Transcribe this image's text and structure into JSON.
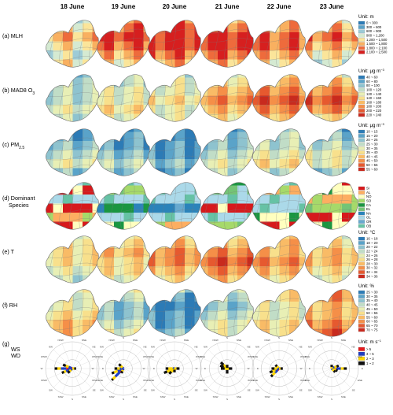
{
  "columns": [
    "18 June",
    "19 June",
    "20 June",
    "21 June",
    "22 June",
    "23 June"
  ],
  "rows": [
    {
      "id": "mlh",
      "label": "(a) MLH",
      "unit": "Unit: m",
      "legend": [
        "0 ~ 300",
        "300 ~ 600",
        "600 ~ 900",
        "900 ~ 1,200",
        "1,200 ~ 1,500",
        "1,500 ~ 1,800",
        "1,800 ~ 2,100",
        "2,100 ~ 2,500"
      ],
      "colors": [
        "#2c7bb6",
        "#5aa3c9",
        "#9dcbd6",
        "#d5ead2",
        "#fbe59a",
        "#f9b060",
        "#ee6b3c",
        "#d61f1f"
      ],
      "levels": [
        [
          3,
          4,
          5,
          4,
          3,
          4
        ],
        [
          5,
          6,
          7,
          6,
          5,
          4
        ],
        [
          6,
          7,
          7,
          7,
          6,
          5
        ],
        [
          5,
          6,
          7,
          7,
          6,
          5
        ],
        [
          5,
          5,
          6,
          6,
          5,
          4
        ],
        [
          4,
          5,
          6,
          5,
          4,
          3
        ]
      ]
    },
    {
      "id": "o3",
      "label": "(b) MAD8 O",
      "label_sub": "3",
      "unit": "Unit: μg m",
      "unit_sup": "−3",
      "legend": [
        "40 ~ 60",
        "60 ~ 80",
        "80 ~ 100",
        "100 ~ 120",
        "120 ~ 140",
        "140 ~ 160",
        "160 ~ 180",
        "180 ~ 200",
        "200 ~ 220",
        "220 ~ 240"
      ],
      "colors": [
        "#2c7bb6",
        "#5aa3c9",
        "#8ec3cf",
        "#c1ddc7",
        "#e8efb5",
        "#f8e08c",
        "#f9bb66",
        "#f58f48",
        "#e6592f",
        "#c82a1e"
      ],
      "levels": [
        [
          2,
          3,
          3,
          3,
          4,
          3
        ],
        [
          3,
          3,
          4,
          4,
          5,
          4
        ],
        [
          3,
          4,
          4,
          5,
          4,
          4
        ],
        [
          4,
          5,
          6,
          7,
          6,
          5
        ],
        [
          5,
          6,
          7,
          8,
          7,
          6
        ],
        [
          4,
          6,
          7,
          8,
          7,
          5
        ]
      ]
    },
    {
      "id": "pm25",
      "label": "(c) PM",
      "label_sub": "2.5",
      "unit": "Unit: μg m",
      "unit_sup": "−3",
      "legend": [
        "10 ~ 15",
        "15 ~ 20",
        "20 ~ 25",
        "25 ~ 30",
        "30 ~ 35",
        "35 ~ 40",
        "40 ~ 45",
        "45 ~ 50",
        "50 ~ 55",
        "55 ~ 60"
      ],
      "colors": [
        "#2c7bb6",
        "#5aa3c9",
        "#8ec3cf",
        "#c1ddc7",
        "#e8efb5",
        "#f8e08c",
        "#f9bb66",
        "#f58f48",
        "#e6592f",
        "#c82a1e"
      ],
      "levels": [
        [
          1,
          1,
          2,
          3,
          4,
          2
        ],
        [
          0,
          1,
          1,
          2,
          3,
          2
        ],
        [
          0,
          0,
          1,
          1,
          2,
          1
        ],
        [
          1,
          2,
          2,
          3,
          4,
          3
        ],
        [
          2,
          3,
          3,
          4,
          5,
          3
        ],
        [
          1,
          2,
          3,
          4,
          4,
          2
        ]
      ]
    },
    {
      "id": "species",
      "label": "(d) Dominant",
      "label2": "Species",
      "unit": "",
      "legend": [
        "SI",
        "AL",
        "NO",
        "SO",
        "CA",
        "EL",
        "NA",
        "OL",
        "OR",
        "OB"
      ],
      "colors": [
        "#d7191c",
        "#fdae61",
        "#ffffbf",
        "#a6d96a",
        "#1a9641",
        "#74c476",
        "#2b83ba",
        "#abd9e9",
        "#67a9cf",
        "#66c2a5"
      ],
      "levels": [
        [
          7,
          0,
          7,
          0,
          1,
          0
        ],
        [
          7,
          3,
          7,
          4,
          7,
          2
        ],
        [
          7,
          7,
          7,
          6,
          7,
          1
        ],
        [
          4,
          5,
          7,
          0,
          7,
          3
        ],
        [
          7,
          1,
          7,
          7,
          2,
          0
        ],
        [
          0,
          2,
          1,
          3,
          0,
          2
        ]
      ]
    },
    {
      "id": "t",
      "label": "(e) T",
      "unit": "Unit: °C",
      "legend": [
        "16 ~ 18",
        "18 ~ 20",
        "20 ~ 22",
        "22 ~ 24",
        "24 ~ 26",
        "26 ~ 28",
        "28 ~ 30",
        "30 ~ 32",
        "32 ~ 34",
        "34 ~ 36"
      ],
      "colors": [
        "#2c7bb6",
        "#5aa3c9",
        "#8ec3cf",
        "#c1ddc7",
        "#e8efb5",
        "#f8e08c",
        "#f9bb66",
        "#f58f48",
        "#e6592f",
        "#c82a1e"
      ],
      "levels": [
        [
          4,
          5,
          5,
          5,
          4,
          3
        ],
        [
          4,
          5,
          6,
          5,
          5,
          4
        ],
        [
          5,
          6,
          7,
          7,
          6,
          5
        ],
        [
          5,
          6,
          7,
          8,
          7,
          6
        ],
        [
          5,
          6,
          6,
          7,
          6,
          5
        ],
        [
          4,
          5,
          6,
          6,
          5,
          4
        ]
      ]
    },
    {
      "id": "rh",
      "label": "(f) RH",
      "unit": "Unit: %",
      "legend": [
        "25 ~ 30",
        "30 ~ 35",
        "35 ~ 40",
        "40 ~ 45",
        "45 ~ 50",
        "50 ~ 55",
        "55 ~ 60",
        "60 ~ 65",
        "65 ~ 70",
        "70 ~ 75"
      ],
      "colors": [
        "#2c7bb6",
        "#5aa3c9",
        "#8ec3cf",
        "#c1ddc7",
        "#e8efb5",
        "#f8e08c",
        "#f9bb66",
        "#f58f48",
        "#e6592f",
        "#c82a1e"
      ],
      "levels": [
        [
          5,
          4,
          4,
          5,
          6,
          6
        ],
        [
          4,
          3,
          2,
          2,
          3,
          4
        ],
        [
          3,
          1,
          0,
          1,
          1,
          2
        ],
        [
          4,
          3,
          2,
          3,
          4,
          4
        ],
        [
          5,
          5,
          4,
          4,
          5,
          5
        ],
        [
          7,
          7,
          6,
          6,
          7,
          8
        ]
      ]
    }
  ],
  "wind": {
    "label": "(g)",
    "label_ws": "WS",
    "label_wd": "WD",
    "unit": "Unit: m s",
    "unit_sup": "−1",
    "legend": [
      "> 5",
      "3 ~ 5",
      "2 ~ 3",
      "1 ~ 2"
    ],
    "colors": [
      "#e41a1c",
      "#1f3fc4",
      "#ffd700",
      "#111111"
    ],
    "directions": [
      "N",
      "NNE",
      "NE",
      "ENE",
      "E",
      "ESE",
      "SE",
      "SSE",
      "S",
      "SSW",
      "SW",
      "WSW",
      "W",
      "WNW",
      "NW",
      "NNW"
    ],
    "roses": [
      {
        "dir": [
          "W",
          "WSW",
          "WNW",
          "SW",
          "E"
        ],
        "len": [
          14,
          9,
          8,
          5,
          3
        ],
        "bins": [
          [
            0.35,
            0.3,
            0.2,
            0.15
          ],
          [
            0.2,
            0.4,
            0.2,
            0.2
          ],
          [
            0.1,
            0.3,
            0.3,
            0.3
          ],
          [
            0,
            0.3,
            0.3,
            0.4
          ],
          [
            0,
            0,
            0.5,
            0.5
          ]
        ]
      },
      {
        "dir": [
          "SW",
          "WSW",
          "W",
          "NW",
          "SSW"
        ],
        "len": [
          13,
          10,
          7,
          5,
          4
        ],
        "bins": [
          [
            0.3,
            0.4,
            0.2,
            0.1
          ],
          [
            0.2,
            0.3,
            0.3,
            0.2
          ],
          [
            0.1,
            0.3,
            0.3,
            0.3
          ],
          [
            0,
            0.2,
            0.4,
            0.4
          ],
          [
            0,
            0.3,
            0.3,
            0.4
          ]
        ]
      },
      {
        "dir": [
          "WSW",
          "W",
          "SW",
          "E",
          "S"
        ],
        "len": [
          9,
          7,
          6,
          4,
          3
        ],
        "bins": [
          [
            0,
            0.3,
            0.4,
            0.3
          ],
          [
            0,
            0.2,
            0.5,
            0.3
          ],
          [
            0,
            0.2,
            0.4,
            0.4
          ],
          [
            0,
            0,
            0.4,
            0.6
          ],
          [
            0,
            0,
            0.3,
            0.7
          ]
        ]
      },
      {
        "dir": [
          "NW",
          "WNW",
          "W",
          "S",
          "E",
          "N"
        ],
        "len": [
          7,
          6,
          5,
          4,
          4,
          3
        ],
        "bins": [
          [
            0,
            0.2,
            0.4,
            0.4
          ],
          [
            0,
            0.2,
            0.3,
            0.5
          ],
          [
            0,
            0,
            0.4,
            0.6
          ],
          [
            0,
            0,
            0.3,
            0.7
          ],
          [
            0,
            0,
            0.3,
            0.7
          ],
          [
            0,
            0,
            0.2,
            0.8
          ]
        ]
      },
      {
        "dir": [
          "SW",
          "WSW",
          "W",
          "NW",
          "E"
        ],
        "len": [
          9,
          8,
          6,
          4,
          3
        ],
        "bins": [
          [
            0.2,
            0.3,
            0.3,
            0.2
          ],
          [
            0.1,
            0.3,
            0.3,
            0.3
          ],
          [
            0,
            0.3,
            0.3,
            0.4
          ],
          [
            0,
            0.2,
            0.4,
            0.4
          ],
          [
            0,
            0,
            0.4,
            0.6
          ]
        ]
      },
      {
        "dir": [
          "E",
          "ENE",
          "ESE",
          "SE",
          "N"
        ],
        "len": [
          12,
          6,
          5,
          4,
          3
        ],
        "bins": [
          [
            0.3,
            0.3,
            0.2,
            0.2
          ],
          [
            0.1,
            0.3,
            0.3,
            0.3
          ],
          [
            0,
            0.3,
            0.4,
            0.3
          ],
          [
            0,
            0.2,
            0.4,
            0.4
          ],
          [
            0,
            0,
            0.4,
            0.6
          ]
        ]
      }
    ]
  }
}
